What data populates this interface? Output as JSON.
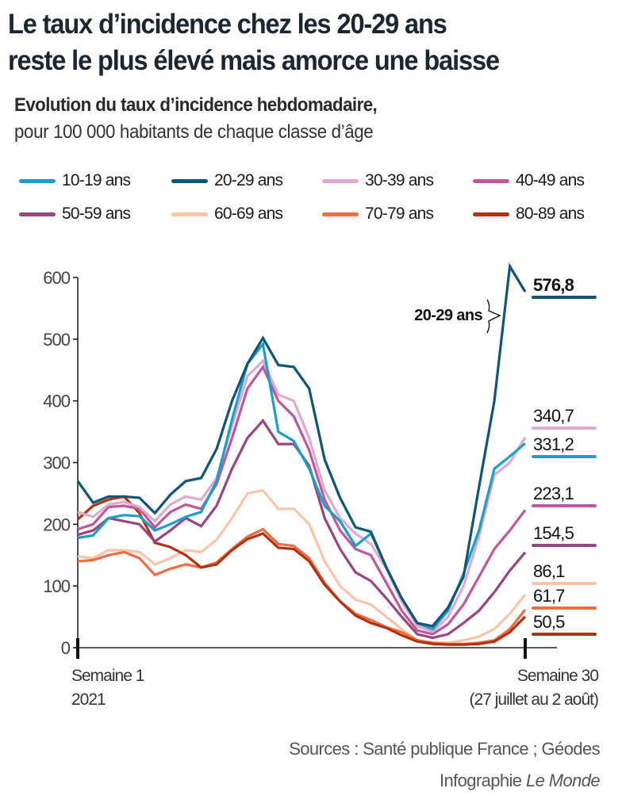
{
  "header": {
    "title_line1": "Le taux d’incidence chez les 20-29 ans",
    "title_line2": "reste le plus élevé mais amorce une baisse",
    "subtitle_bold": "Evolution du taux d’incidence hebdomadaire,",
    "subtitle_regular": "pour 100 000 habitants de chaque classe d’âge"
  },
  "footer": {
    "sources": "Sources : Santé publique France ; Géodes",
    "credit_prefix": "Infographie ",
    "credit_brand": "Le Monde"
  },
  "chart_data": {
    "type": "line",
    "title": "Le taux d’incidence chez les 20-29 ans reste le plus élevé mais amorce une baisse",
    "subtitle": "Evolution du taux d’incidence hebdomadaire, pour 100 000 habitants de chaque classe d’âge",
    "xlabel": "",
    "ylabel": "",
    "x": [
      1,
      2,
      3,
      4,
      5,
      6,
      7,
      8,
      9,
      10,
      11,
      12,
      13,
      14,
      15,
      16,
      17,
      18,
      19,
      20,
      21,
      22,
      23,
      24,
      25,
      26,
      27,
      28,
      29,
      30
    ],
    "xlim": [
      1,
      30
    ],
    "ylim": [
      0,
      600
    ],
    "yticks": [
      0,
      100,
      200,
      300,
      400,
      500,
      600
    ],
    "x_tick_labels": [
      {
        "week": 1,
        "line1": "Semaine 1",
        "line2": "2021"
      },
      {
        "week": 30,
        "line1": "Semaine 30",
        "line2": "(27 juillet au 2 août)"
      }
    ],
    "grid": false,
    "legend_position": "top",
    "annotation": {
      "text": "20-29 ans",
      "series": "20-29 ans",
      "week": 29
    },
    "series": [
      {
        "name": "10-19 ans",
        "color": "#1a9fc9",
        "end_label": "331,2",
        "values": [
          178,
          182,
          210,
          215,
          213,
          190,
          200,
          212,
          220,
          270,
          370,
          460,
          492,
          350,
          335,
          290,
          230,
          205,
          165,
          185,
          130,
          80,
          40,
          30,
          60,
          120,
          190,
          290,
          310,
          331.2
        ]
      },
      {
        "name": "20-29 ans",
        "color": "#0f5578",
        "end_label": "576,8",
        "values": [
          270,
          235,
          245,
          245,
          243,
          218,
          248,
          270,
          275,
          322,
          400,
          460,
          502,
          458,
          455,
          420,
          305,
          243,
          195,
          188,
          130,
          80,
          40,
          35,
          65,
          115,
          260,
          400,
          618,
          576.8
        ]
      },
      {
        "name": "30-39 ans",
        "color": "#e0a9d2",
        "end_label": "340,7",
        "values": [
          220,
          212,
          232,
          236,
          228,
          205,
          232,
          245,
          240,
          275,
          360,
          440,
          465,
          410,
          400,
          340,
          255,
          210,
          185,
          168,
          128,
          75,
          35,
          26,
          50,
          100,
          180,
          280,
          300,
          340.7
        ]
      },
      {
        "name": "40-49 ans",
        "color": "#c2569c",
        "end_label": "223,1",
        "values": [
          192,
          200,
          228,
          230,
          225,
          195,
          220,
          232,
          225,
          265,
          340,
          420,
          455,
          400,
          375,
          320,
          240,
          190,
          160,
          150,
          105,
          60,
          28,
          22,
          38,
          70,
          115,
          160,
          190,
          223.1
        ]
      },
      {
        "name": "50-59 ans",
        "color": "#9a4482",
        "end_label": "154,5",
        "values": [
          183,
          190,
          210,
          205,
          200,
          172,
          190,
          210,
          197,
          230,
          290,
          340,
          368,
          330,
          330,
          295,
          210,
          160,
          122,
          108,
          80,
          50,
          22,
          16,
          22,
          40,
          60,
          90,
          125,
          154.5
        ]
      },
      {
        "name": "60-69 ans",
        "color": "#fcc4a5",
        "end_label": "86,1",
        "values": [
          148,
          145,
          158,
          158,
          155,
          135,
          145,
          158,
          155,
          175,
          210,
          250,
          255,
          225,
          225,
          200,
          140,
          100,
          78,
          70,
          50,
          30,
          12,
          8,
          8,
          12,
          18,
          30,
          55,
          86.1
        ]
      },
      {
        "name": "70-79 ans",
        "color": "#ed6c41",
        "end_label": "61,7",
        "values": [
          140,
          142,
          150,
          155,
          145,
          118,
          128,
          135,
          130,
          138,
          160,
          180,
          192,
          168,
          165,
          145,
          105,
          75,
          55,
          45,
          33,
          25,
          12,
          8,
          6,
          6,
          8,
          12,
          30,
          61.7
        ]
      },
      {
        "name": "80-89 ans",
        "color": "#b5300f",
        "end_label": "50,5",
        "values": [
          208,
          230,
          240,
          245,
          218,
          170,
          163,
          150,
          130,
          135,
          158,
          176,
          185,
          162,
          160,
          140,
          102,
          75,
          52,
          40,
          32,
          20,
          10,
          6,
          5,
          5,
          6,
          10,
          25,
          50.5
        ]
      }
    ]
  }
}
